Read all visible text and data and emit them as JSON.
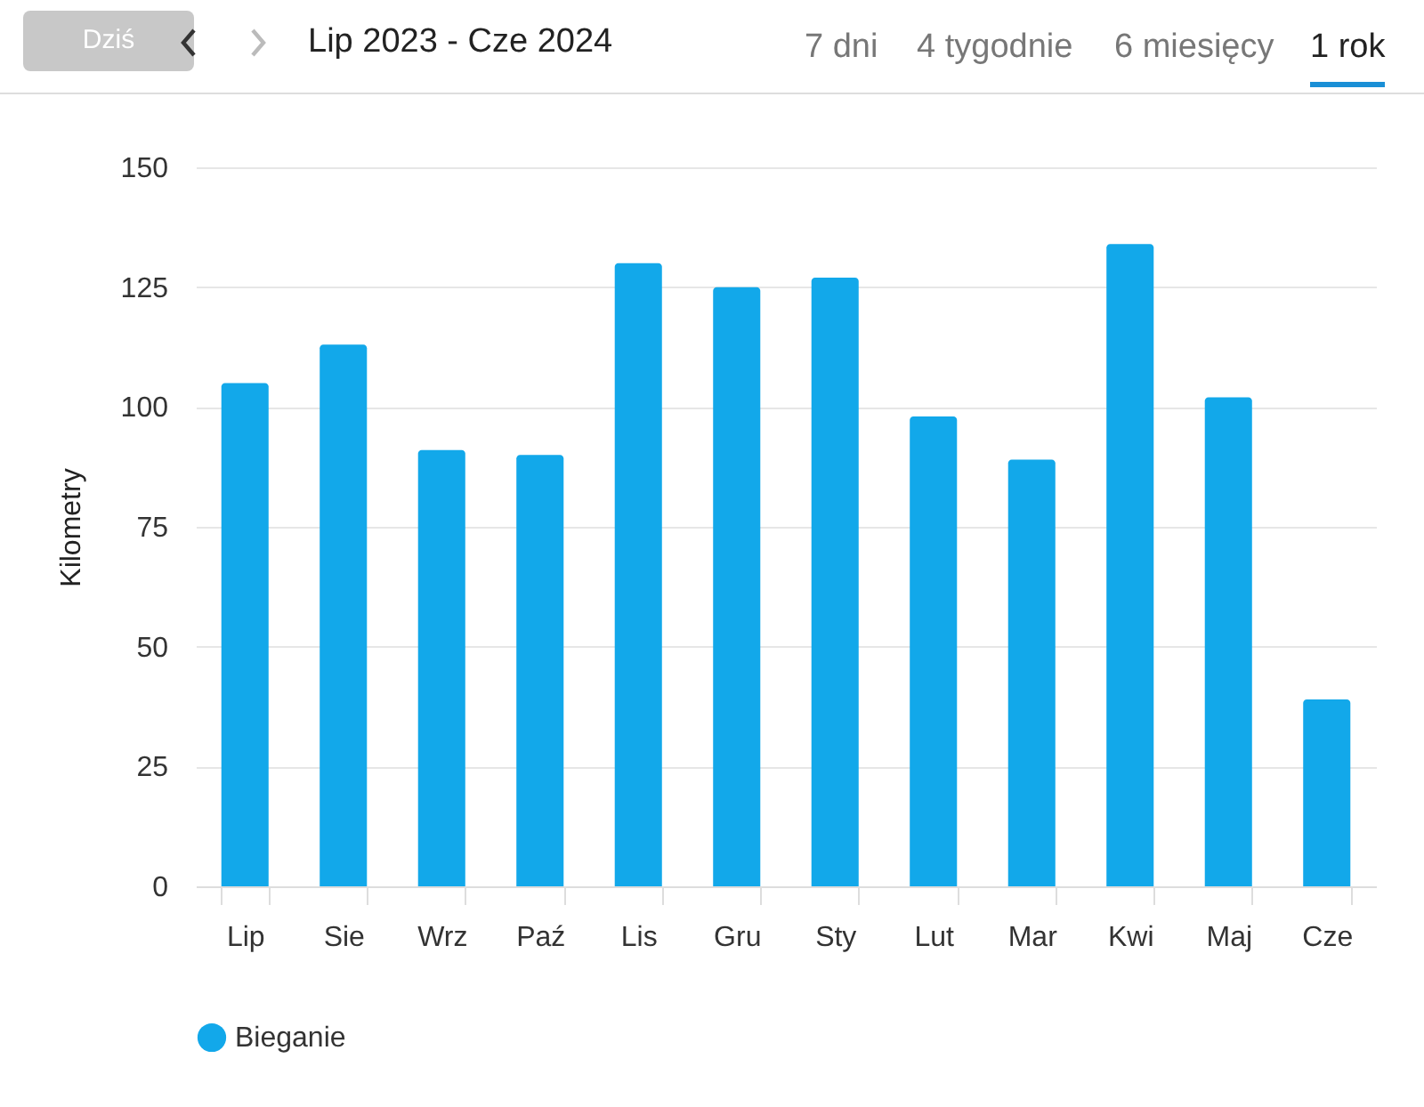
{
  "chart_data": {
    "type": "bar",
    "title": "Lip 2023 - Cze 2024",
    "ylabel": "Kilometry",
    "annotations": [
      "Dziś",
      "7 dni",
      "4 tygodnie",
      "6 miesięcy",
      "1 rok"
    ],
    "categories": [
      "Lip",
      "Sie",
      "Wrz",
      "Paź",
      "Lis",
      "Gru",
      "Sty",
      "Lut",
      "Mar",
      "Kwi",
      "Maj",
      "Cze"
    ],
    "series": [
      {
        "name": "Bieganie",
        "color": "#12a8ea",
        "values": [
          105,
          113,
          91,
          90,
          130,
          125,
          127,
          98,
          89,
          134,
          102,
          39
        ]
      }
    ],
    "ylim": [
      0,
      150
    ],
    "yticks": [
      0,
      25,
      50,
      75,
      100,
      125,
      150
    ],
    "grid": "y",
    "legend": "bottom"
  }
}
